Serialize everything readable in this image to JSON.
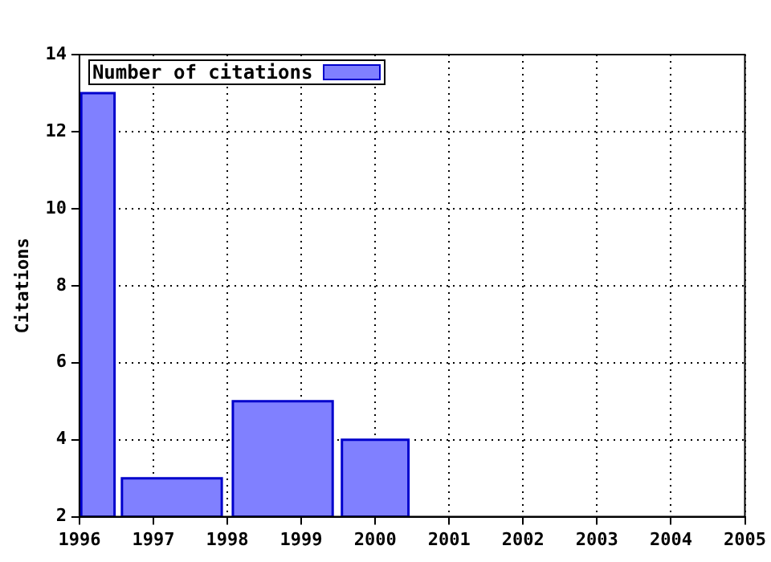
{
  "chart_data": {
    "type": "histogram",
    "ylabel": "Citations",
    "series": [
      {
        "name": "Number of citations",
        "color": "#8080ff",
        "values": [
          13,
          3,
          5,
          4
        ]
      }
    ],
    "bins": [
      1996,
      1996.5,
      1998,
      1999.5,
      2000.5
    ],
    "xlim": [
      1996,
      2005
    ],
    "xticks": [
      1996,
      1997,
      1998,
      1999,
      2000,
      2001,
      2002,
      2003,
      2004,
      2005
    ],
    "ylim": [
      2,
      14
    ],
    "yticks": [
      2,
      4,
      6,
      8,
      10,
      12,
      14
    ],
    "grid": true,
    "legend": "top left"
  }
}
